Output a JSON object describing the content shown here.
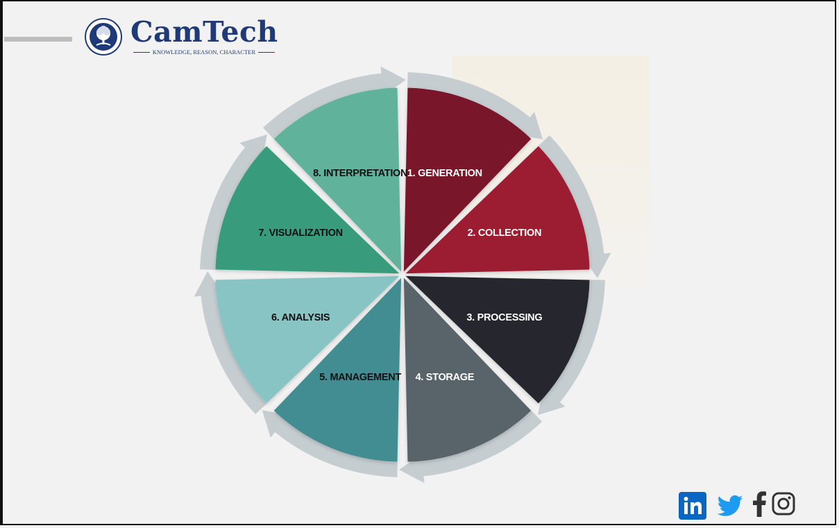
{
  "logo": {
    "name": "CamTech",
    "tagline": "KNOWLEDGE, REASON, CHARACTER",
    "color": "#1f3a76"
  },
  "cycle": {
    "segments": [
      {
        "label": "1. GENERATION",
        "color": "#7a1229",
        "text_color": "#ffffff"
      },
      {
        "label": "2. COLLECTION",
        "color": "#9c1a32",
        "text_color": "#ffffff"
      },
      {
        "label": "3. PROCESSING",
        "color": "#25252e",
        "text_color": "#ffffff"
      },
      {
        "label": "4. STORAGE",
        "color": "#58636b",
        "text_color": "#ffffff"
      },
      {
        "label": "5. MANAGEMENT",
        "color": "#428d91",
        "text_color": "#111111"
      },
      {
        "label": "6. ANALYSIS",
        "color": "#88c4c4",
        "text_color": "#111111"
      },
      {
        "label": "7. VISUALIZATION",
        "color": "#389c7c",
        "text_color": "#111111"
      },
      {
        "label": "8. INTERPRETATION",
        "color": "#60b29a",
        "text_color": "#111111"
      }
    ],
    "arrow_color": "#c5cdd0"
  },
  "social": {
    "icons": [
      "linkedin-icon",
      "twitter-icon",
      "facebook-icon",
      "instagram-icon"
    ],
    "linkedin_color": "#0a66c2",
    "twitter_color": "#1d9bf0",
    "dark_icon_color": "#333333"
  }
}
